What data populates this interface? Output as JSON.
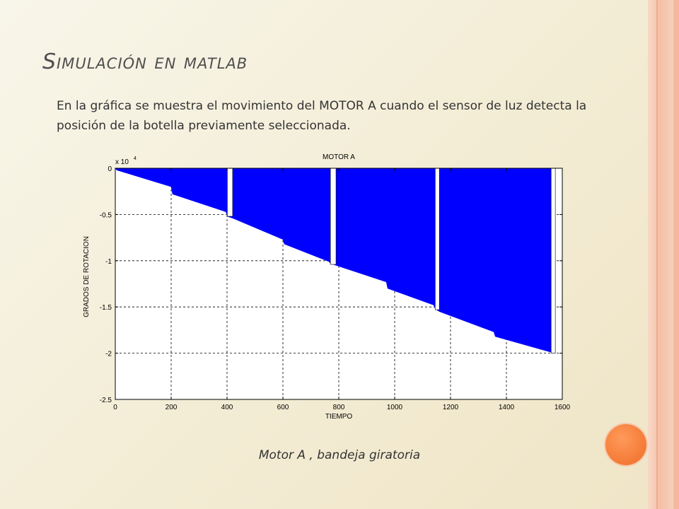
{
  "slide": {
    "title": "Simulación en matlab",
    "body": "En la gráfica se muestra el movimiento del MOTOR A cuando el sensor de luz detecta la posición de la botella previamente seleccionada.",
    "caption": "Motor A ,   bandeja giratoria"
  },
  "colors": {
    "fill": "#0000ff",
    "grid": "#000000",
    "plot_background": "#ffffff",
    "accent_circle": "#f47a36",
    "deco_strip": "#f3c0a8"
  },
  "chart_data": {
    "type": "area",
    "title": "MOTOR A",
    "xlabel": "TIEMPO",
    "ylabel": "GRADOS DE ROTACION",
    "y_multiplier": "x 10",
    "y_multiplier_exp": "4",
    "xlim": [
      0,
      1600
    ],
    "ylim": [
      -2.5,
      0
    ],
    "xticks": [
      0,
      200,
      400,
      600,
      800,
      1000,
      1200,
      1400,
      1600
    ],
    "xtick_labels": [
      "0",
      "200",
      "400",
      "600",
      "800",
      "1000",
      "1200",
      "1400",
      "1600"
    ],
    "yticks": [
      0,
      -0.5,
      -1,
      -1.5,
      -2,
      -2.5
    ],
    "ytick_labels": [
      "0",
      "-0.5",
      "-1",
      "-1.5",
      "-2",
      "-2.5"
    ],
    "grid": true,
    "series": [
      {
        "values_note": "",
        "x": [
          0,
          5,
          200,
          205,
          395,
          400,
          401,
          410,
          420,
          600,
          605,
          765,
          770,
          780,
          790,
          970,
          975,
          1140,
          1145,
          1150,
          1160,
          1355,
          1360,
          1560
        ],
        "y": [
          0,
          -0.02,
          -0.2,
          -0.28,
          -0.47,
          -0.5,
          -0.52,
          -0.53,
          -0.54,
          -0.77,
          -0.82,
          -1.01,
          -1.03,
          -1.04,
          -1.05,
          -1.23,
          -1.3,
          -1.48,
          -1.52,
          -1.53,
          -1.55,
          -1.77,
          -1.82,
          -1.99
        ]
      }
    ],
    "notches": [
      {
        "x0": 401,
        "x1": 420,
        "depth": -0.52
      },
      {
        "x0": 770,
        "x1": 790,
        "depth": -1.04
      },
      {
        "x0": 1145,
        "x1": 1160,
        "depth": -1.53
      },
      {
        "x0": 1560,
        "x1": 1575,
        "depth": -2.0
      }
    ],
    "fill_end_x": 1560
  }
}
